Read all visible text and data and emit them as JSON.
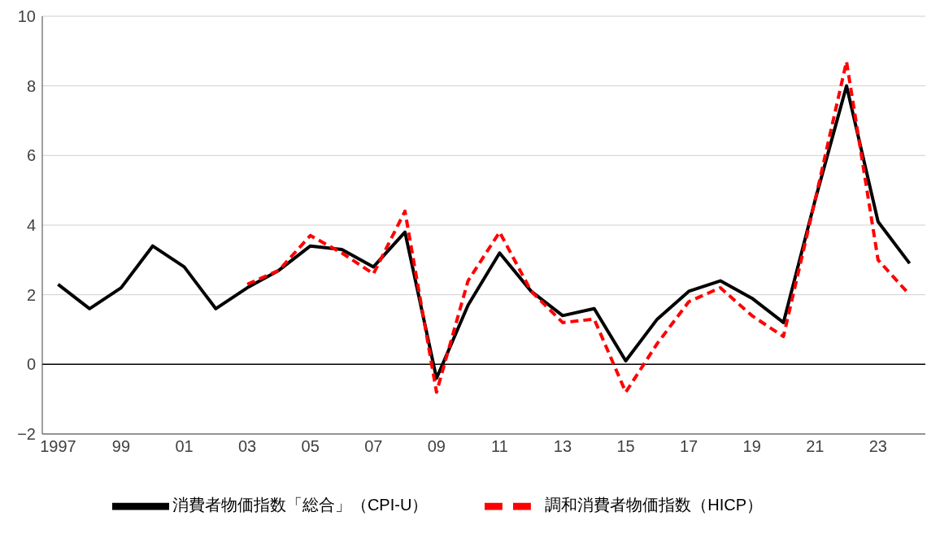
{
  "chart_data": {
    "type": "line",
    "x": [
      1997,
      1998,
      1999,
      2000,
      2001,
      2002,
      2003,
      2004,
      2005,
      2006,
      2007,
      2008,
      2009,
      2010,
      2011,
      2012,
      2013,
      2014,
      2015,
      2016,
      2017,
      2018,
      2019,
      2020,
      2021,
      2022,
      2023,
      2024
    ],
    "series": [
      {
        "name": "消費者物価指数「総合」（CPI-U）",
        "color": "#000000",
        "line_style": "solid",
        "values": [
          2.3,
          1.6,
          2.2,
          3.4,
          2.8,
          1.6,
          2.2,
          2.7,
          3.4,
          3.3,
          2.8,
          3.8,
          -0.4,
          1.7,
          3.2,
          2.1,
          1.4,
          1.6,
          0.1,
          1.3,
          2.1,
          2.4,
          1.9,
          1.2,
          4.7,
          8.0,
          4.1,
          2.9
        ]
      },
      {
        "name": "調和消費者物価指数（HICP）",
        "color": "#ff0000",
        "line_style": "dashed",
        "values": [
          null,
          null,
          null,
          null,
          null,
          null,
          2.3,
          2.7,
          3.7,
          3.2,
          2.6,
          4.4,
          -0.8,
          2.4,
          3.8,
          2.1,
          1.2,
          1.3,
          -0.8,
          0.6,
          1.8,
          2.2,
          1.4,
          0.8,
          4.7,
          8.7,
          3.0,
          2.0
        ]
      }
    ],
    "xlim": [
      1996.5,
      2024.5
    ],
    "xticks": [
      {
        "value": 1997,
        "label": "1997"
      },
      {
        "value": 1999,
        "label": "99"
      },
      {
        "value": 2001,
        "label": "01"
      },
      {
        "value": 2003,
        "label": "03"
      },
      {
        "value": 2005,
        "label": "05"
      },
      {
        "value": 2007,
        "label": "07"
      },
      {
        "value": 2009,
        "label": "09"
      },
      {
        "value": 2011,
        "label": "11"
      },
      {
        "value": 2013,
        "label": "13"
      },
      {
        "value": 2015,
        "label": "15"
      },
      {
        "value": 2017,
        "label": "17"
      },
      {
        "value": 2019,
        "label": "19"
      },
      {
        "value": 2021,
        "label": "21"
      },
      {
        "value": 2023,
        "label": "23"
      }
    ],
    "ylim": [
      -2,
      10
    ],
    "yticks": [
      {
        "value": -2,
        "label": "−2"
      },
      0,
      2,
      4,
      6,
      8,
      10
    ],
    "ref_lines": [
      {
        "axis": "y",
        "value": 0,
        "color": "#000000"
      }
    ],
    "grid": "y",
    "legend": "bottom",
    "marker": "none"
  }
}
